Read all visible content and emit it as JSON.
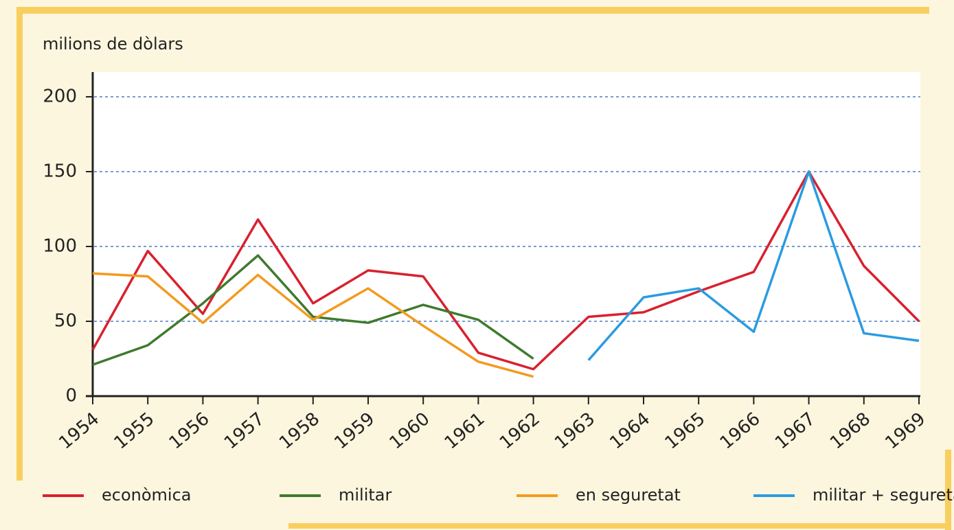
{
  "chart_data": {
    "type": "line",
    "y_axis_label": "milions de dòlars",
    "x": [
      1954,
      1955,
      1956,
      1957,
      1958,
      1959,
      1960,
      1961,
      1962,
      1963,
      1964,
      1965,
      1966,
      1967,
      1968,
      1969
    ],
    "xlim": [
      1954,
      1969
    ],
    "xticks": [
      1954,
      1955,
      1956,
      1957,
      1958,
      1959,
      1960,
      1961,
      1962,
      1963,
      1964,
      1965,
      1966,
      1967,
      1968,
      1969
    ],
    "ylim": [
      0,
      200
    ],
    "yticks": [
      0,
      50,
      100,
      150,
      200
    ],
    "grid": true,
    "legend": "bottom",
    "series": [
      {
        "name": "econòmica",
        "color": "#d9202e",
        "values": [
          31,
          97,
          55,
          118,
          62,
          84,
          80,
          29,
          18,
          53,
          56,
          70,
          83,
          150,
          87,
          50
        ]
      },
      {
        "name": "militar",
        "color": "#3f7a2e",
        "values": [
          21,
          34,
          62,
          94,
          53,
          49,
          61,
          51,
          25,
          null,
          null,
          null,
          null,
          null,
          null,
          null
        ]
      },
      {
        "name": "en seguretat",
        "color": "#f39a1e",
        "values": [
          82,
          80,
          49,
          81,
          51,
          72,
          47,
          23,
          13,
          null,
          null,
          null,
          null,
          null,
          null,
          null
        ]
      },
      {
        "name": "militar + seguretat",
        "color": "#2b9be0",
        "values": [
          null,
          null,
          null,
          null,
          null,
          null,
          null,
          null,
          null,
          24,
          66,
          72,
          43,
          150,
          42,
          37
        ]
      }
    ]
  }
}
